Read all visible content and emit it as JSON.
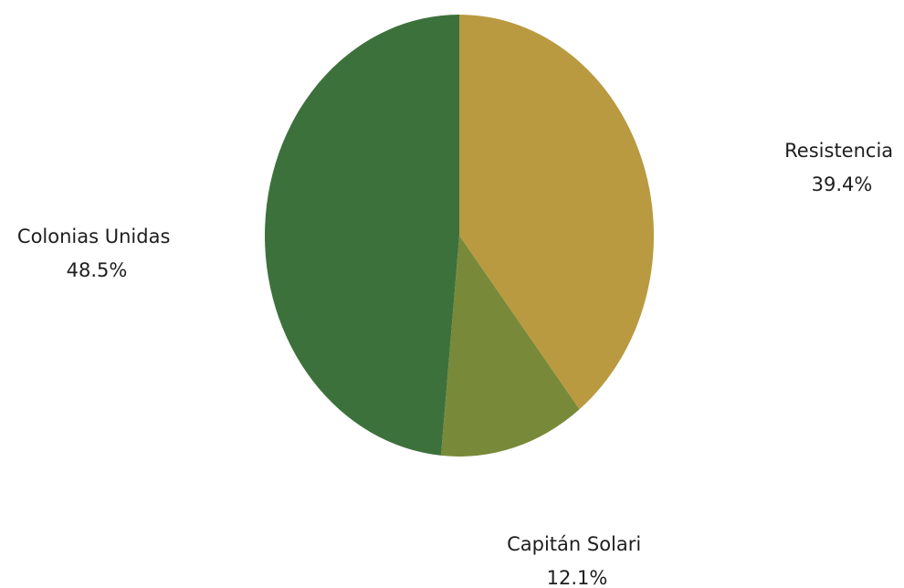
{
  "chart_data": {
    "type": "pie",
    "title": "",
    "slices": [
      {
        "label": "Resistencia",
        "value": 39.4,
        "value_label": "39.4%",
        "color": "#b99a41"
      },
      {
        "label": "Capitán Solari",
        "value": 12.1,
        "value_label": "12.1%",
        "color": "#788a39"
      },
      {
        "label": "Colonias Unidas",
        "value": 48.5,
        "value_label": "48.5%",
        "color": "#3d713c"
      }
    ],
    "legend": "none"
  }
}
